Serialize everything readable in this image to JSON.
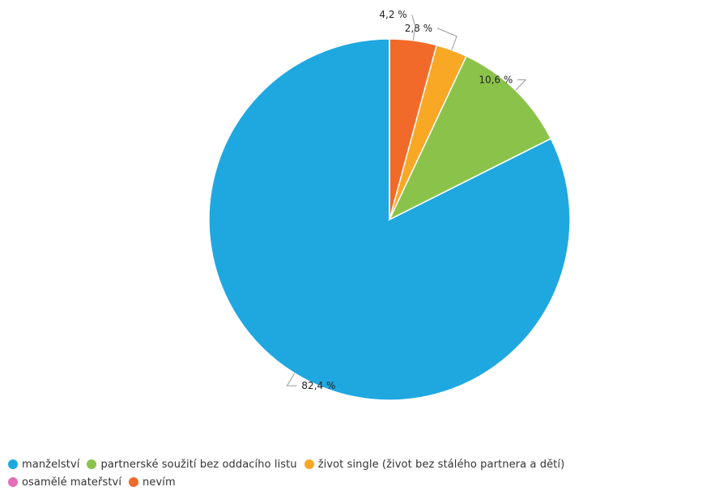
{
  "chart_data": {
    "type": "pie",
    "title": "",
    "slices": [
      {
        "label": "manželství",
        "value": 82.4,
        "display": "82,4 %",
        "color": "#1fa8e0"
      },
      {
        "label": "partnerské soužití bez oddacího listu",
        "value": 10.6,
        "display": "10,6 %",
        "color": "#8bc34a"
      },
      {
        "label": "život single (život bez stálého partnera a dětí)",
        "value": 2.8,
        "display": "2,8 %",
        "color": "#f9a825"
      },
      {
        "label": "osamělé mateřství",
        "value": 0,
        "display": "",
        "color": "#e36fb6"
      },
      {
        "label": "nevím",
        "value": 4.2,
        "display": "4,2 %",
        "color": "#f26a2a"
      }
    ],
    "legend_position": "bottom"
  },
  "legend": {
    "rows": [
      [
        0,
        1,
        2
      ],
      [
        3,
        4
      ]
    ]
  }
}
